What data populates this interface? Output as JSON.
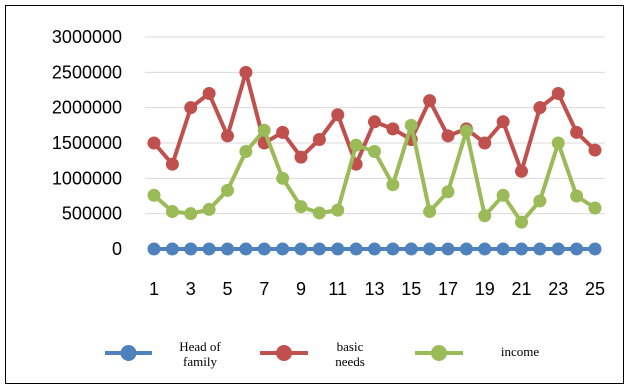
{
  "chart_data": {
    "type": "line",
    "title": "",
    "xlabel": "",
    "ylabel": "",
    "x": [
      1,
      2,
      3,
      4,
      5,
      6,
      7,
      8,
      9,
      10,
      11,
      12,
      13,
      14,
      15,
      16,
      17,
      18,
      19,
      20,
      21,
      22,
      23,
      24,
      25
    ],
    "x_tick_labels": [
      "1",
      "3",
      "5",
      "7",
      "9",
      "11",
      "13",
      "15",
      "17",
      "19",
      "21",
      "23",
      "25"
    ],
    "ylim": [
      0,
      3000000
    ],
    "y_tick_labels": [
      "0",
      "500000",
      "1000000",
      "1500000",
      "2000000",
      "2500000",
      "3000000"
    ],
    "grid": true,
    "legend_position": "bottom",
    "series": [
      {
        "name_lines": [
          "Head of",
          "family"
        ],
        "color": "#4f81bd",
        "values": [
          0,
          0,
          0,
          0,
          0,
          0,
          0,
          0,
          0,
          0,
          0,
          0,
          0,
          0,
          0,
          0,
          0,
          0,
          0,
          0,
          0,
          0,
          0,
          0,
          0
        ]
      },
      {
        "name_lines": [
          "basic",
          "needs"
        ],
        "color": "#c0504d",
        "values": [
          1500000,
          1200000,
          2000000,
          2200000,
          1600000,
          2500000,
          1500000,
          1650000,
          1300000,
          1550000,
          1900000,
          1200000,
          1800000,
          1700000,
          1550000,
          2100000,
          1600000,
          1700000,
          1500000,
          1800000,
          1100000,
          2000000,
          2200000,
          1650000,
          1400000
        ]
      },
      {
        "name_lines": [
          "income"
        ],
        "color": "#9bbb59",
        "values": [
          760000,
          530000,
          500000,
          560000,
          830000,
          1380000,
          1680000,
          1000000,
          600000,
          510000,
          550000,
          1470000,
          1380000,
          910000,
          1750000,
          530000,
          810000,
          1670000,
          470000,
          760000,
          380000,
          680000,
          1500000,
          750000,
          580000
        ]
      }
    ]
  }
}
